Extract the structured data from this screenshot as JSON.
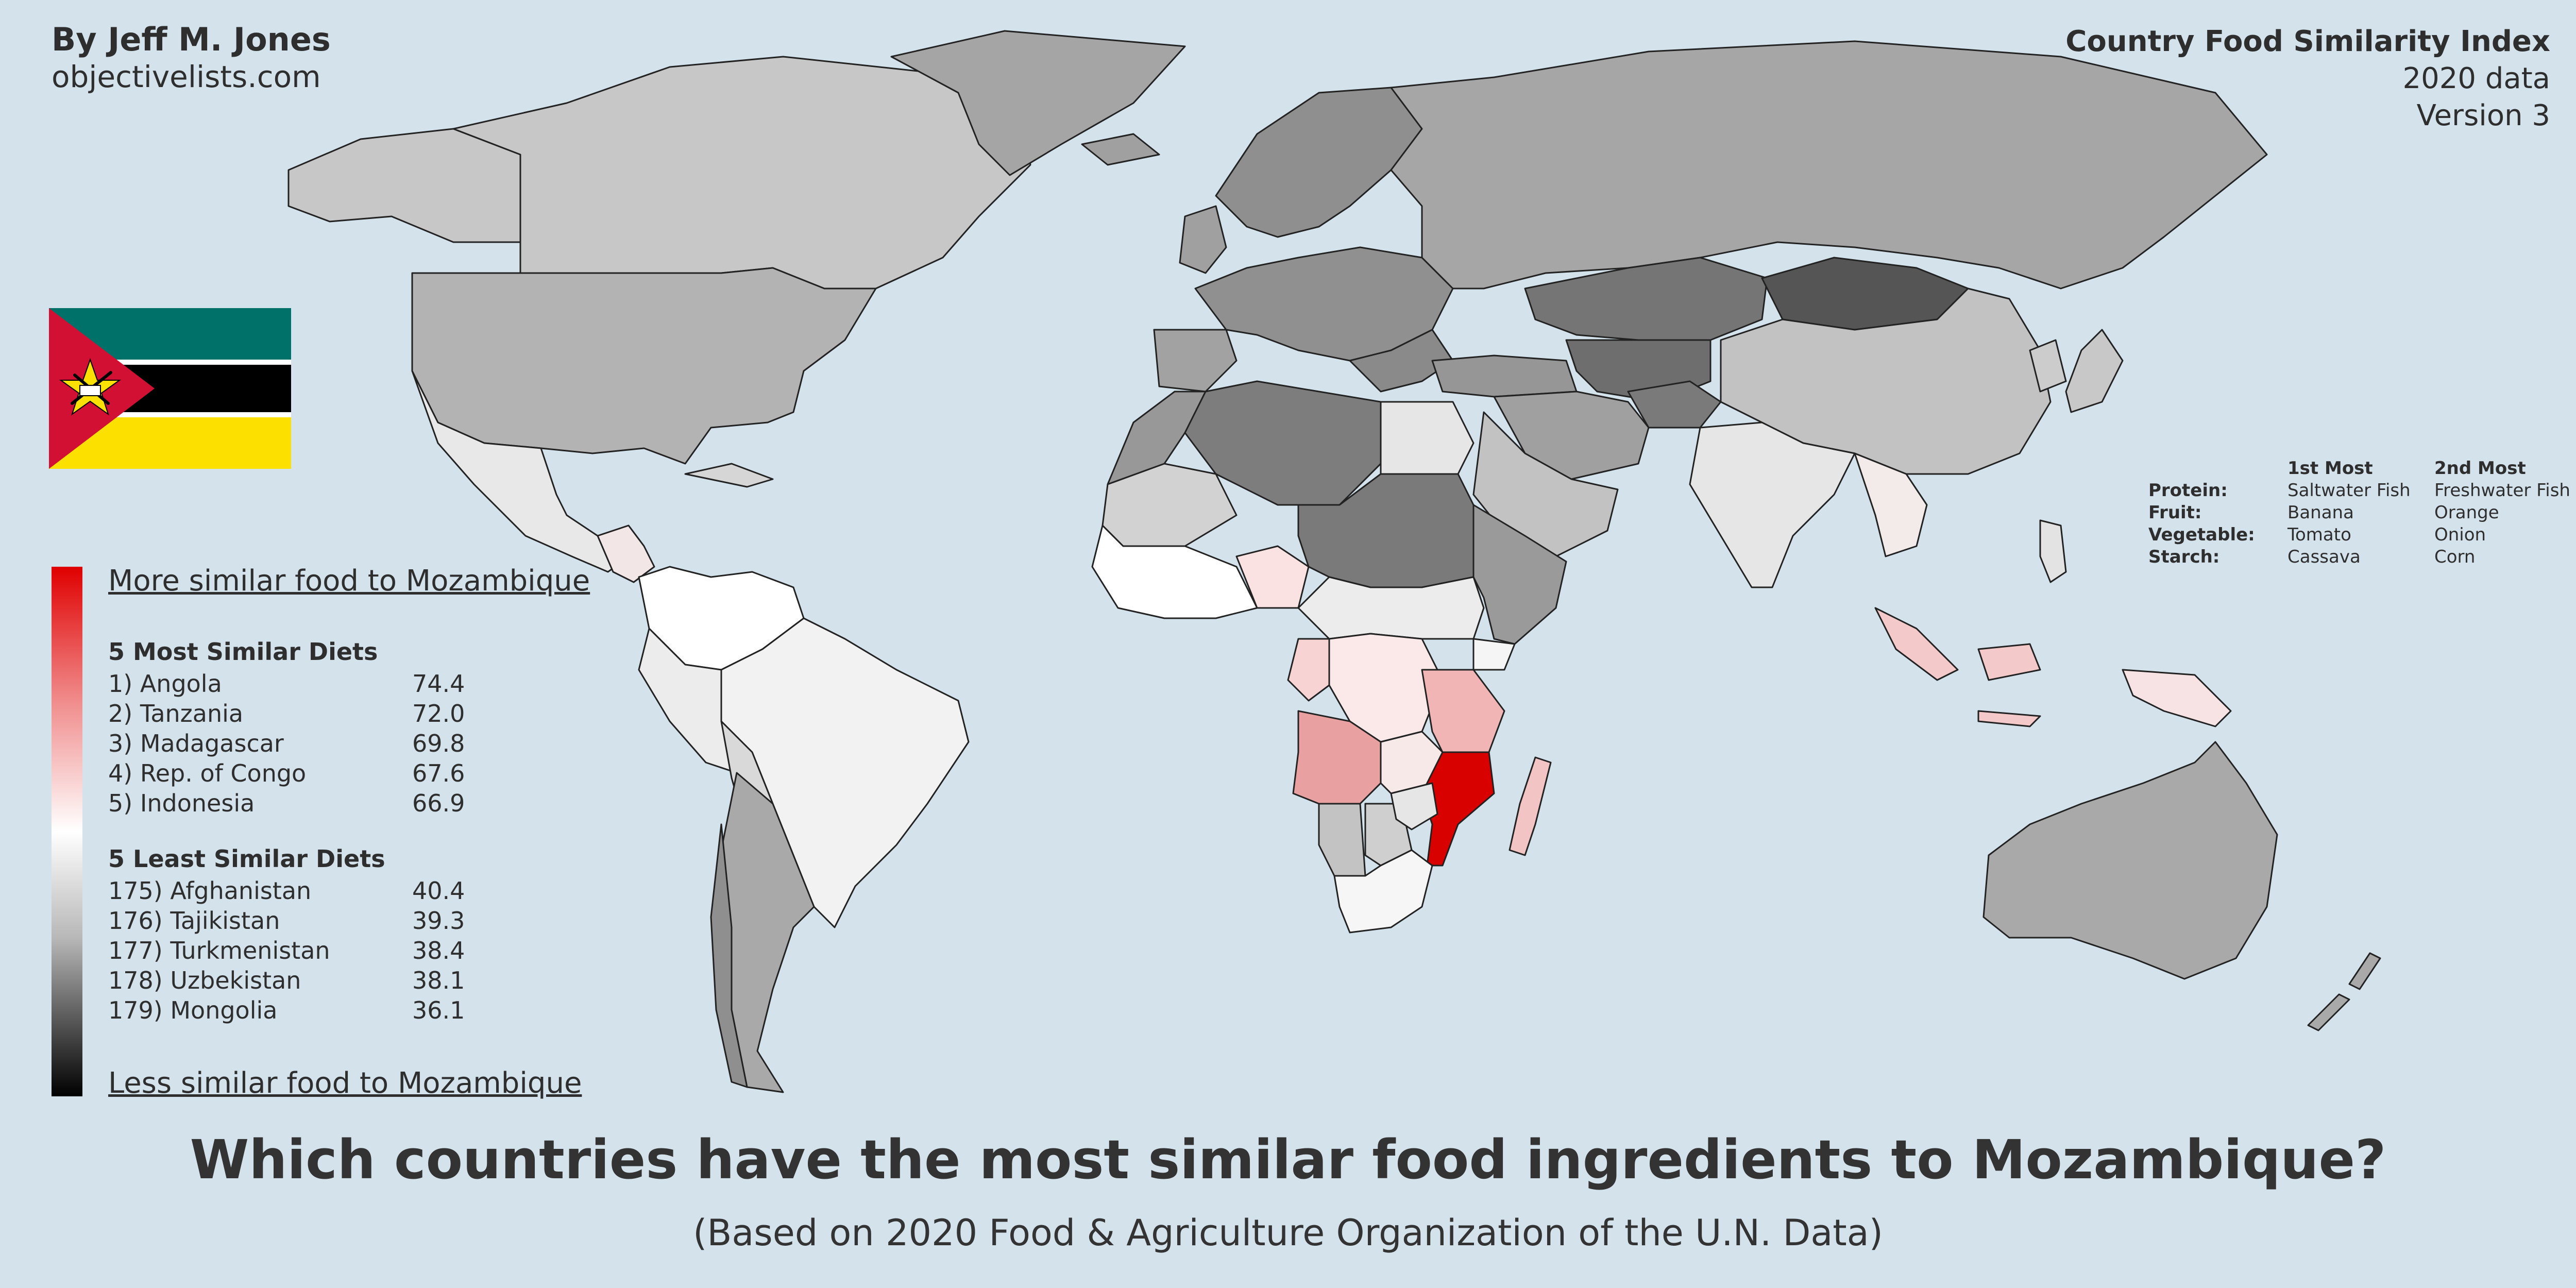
{
  "author": {
    "name": "By Jeff M. Jones",
    "site": "objectivelists.com"
  },
  "header": {
    "title": "Country Food Similarity Index",
    "data_year": "2020 data",
    "version": "Version 3"
  },
  "flag": {
    "name": "Mozambique",
    "colors": {
      "green": "#007168",
      "black": "#000000",
      "yellow": "#fce100",
      "red": "#d21034",
      "star": "#fce100",
      "fimbriation": "#ffffff"
    }
  },
  "scale": {
    "top_label": "More similar food to Mozambique",
    "bottom_label": "Less similar food to Mozambique",
    "top_color": "#e00000",
    "mid_color": "#ffffff",
    "bottom_color": "#000000"
  },
  "most_similar": {
    "heading": "5 Most Similar Diets",
    "items": [
      {
        "rank": "1) Angola",
        "score": "74.4"
      },
      {
        "rank": "2) Tanzania",
        "score": "72.0"
      },
      {
        "rank": "3) Madagascar",
        "score": "69.8"
      },
      {
        "rank": "4) Rep. of Congo",
        "score": "67.6"
      },
      {
        "rank": "5) Indonesia",
        "score": "66.9"
      }
    ]
  },
  "least_similar": {
    "heading": "5 Least Similar Diets",
    "items": [
      {
        "rank": "175) Afghanistan",
        "score": "40.4"
      },
      {
        "rank": "176) Tajikistan",
        "score": "39.3"
      },
      {
        "rank": "177) Turkmenistan",
        "score": "38.4"
      },
      {
        "rank": "178) Uzbekistan",
        "score": "38.1"
      },
      {
        "rank": "179) Mongolia",
        "score": "36.1"
      }
    ]
  },
  "ingredients": {
    "col1": "1st Most",
    "col2": "2nd Most",
    "rows": [
      {
        "label": "Protein:",
        "first": "Saltwater Fish",
        "second": "Freshwater Fish"
      },
      {
        "label": "Fruit:",
        "first": "Banana",
        "second": "Orange"
      },
      {
        "label": "Vegetable:",
        "first": "Tomato",
        "second": "Onion"
      },
      {
        "label": "Starch:",
        "first": "Cassava",
        "second": "Corn"
      }
    ]
  },
  "footer": {
    "title": "Which countries have the most similar food ingredients to Mozambique?",
    "subtitle": "(Based on 2020 Food & Agriculture Organization of the U.N. Data)"
  },
  "map": {
    "ocean_color": "#d3e2eb",
    "border_color": "#222222"
  }
}
